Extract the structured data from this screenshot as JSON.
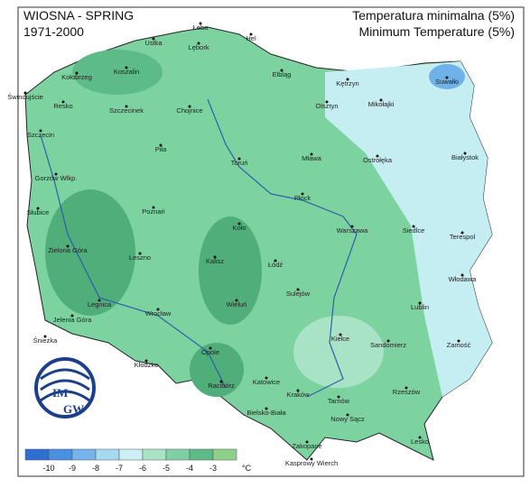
{
  "header": {
    "season": "WIOSNA - SPRING",
    "period": "1971-2000",
    "title_pl": "Temperatura minimalna (5%)",
    "title_en": "Minimum Temperature (5%)"
  },
  "logo": [
    "IM",
    "GW"
  ],
  "legend": {
    "ticks": [
      -10,
      -9,
      -8,
      -7,
      -6,
      -5,
      -4,
      -3
    ],
    "unit": "°C",
    "colors": [
      "#2f6fd0",
      "#4a8fe0",
      "#75b4ec",
      "#a6daf2",
      "#cdeef4",
      "#a9e3c6",
      "#7fd0a4",
      "#5cbb88",
      "#8fd08a"
    ]
  },
  "cities": [
    "Łeba",
    "Hel",
    "Ustka",
    "Lębork",
    "Kołobrzeg",
    "Koszalin",
    "Świnoujście",
    "Elbląg",
    "Kętrzyn",
    "Suwałki",
    "Resko",
    "Szczecinek",
    "Chojnice",
    "Olsztyn",
    "Mikołajki",
    "Szczecin",
    "Piła",
    "Toruń",
    "Mława",
    "Ostrołęka",
    "Białystok",
    "Gorzów Wlkp.",
    "Płock",
    "Słubice",
    "Poznań",
    "Koło",
    "Warszawa",
    "Siedlce",
    "Terespol",
    "Zielona Góra",
    "Leszno",
    "Kalisz",
    "Łódź",
    "Legnica",
    "Sulejów",
    "Włodawa",
    "Wieluń",
    "Lublin",
    "Jelenia Góra",
    "Wrocław",
    "Kielce",
    "Śnieżka",
    "Sandomierz",
    "Zamość",
    "Opole",
    "Kłodzko",
    "Racibórz",
    "Katowice",
    "Kraków",
    "Tarnów",
    "Rzeszów",
    "Bielsko-Biała",
    "Nowy Sącz",
    "Lesko",
    "Zakopane",
    "Kasprowy Wierch"
  ]
}
